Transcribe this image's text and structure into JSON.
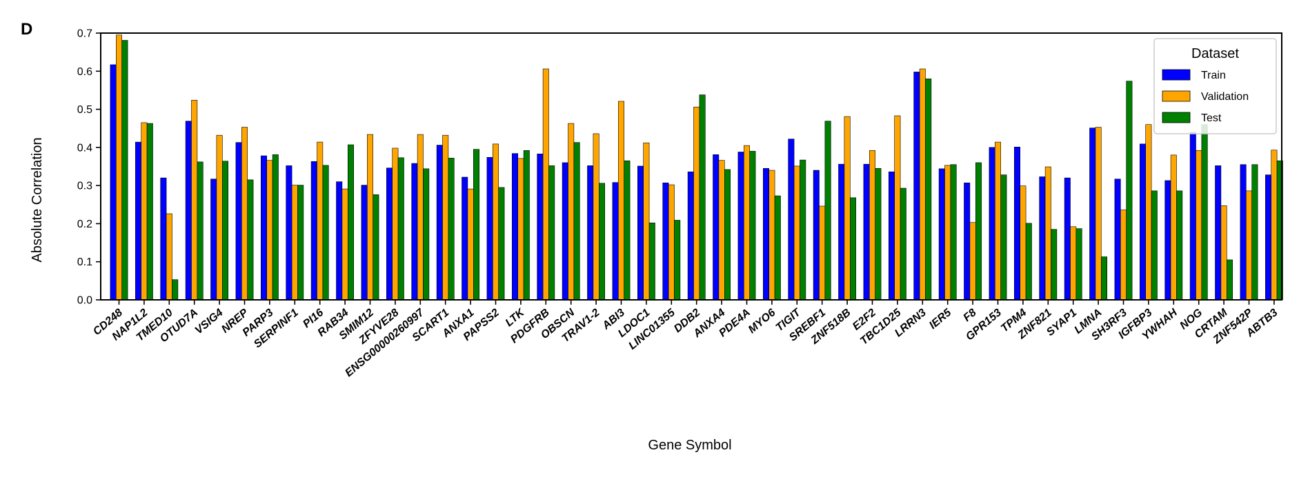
{
  "chart_data": {
    "type": "bar",
    "panel_label": "D",
    "xlabel": "Gene Symbol",
    "ylabel": "Absolute Correlation",
    "ylim": [
      0,
      0.7
    ],
    "yticks": [
      "0.0",
      "0.1",
      "0.2",
      "0.3",
      "0.4",
      "0.5",
      "0.6",
      "0.7"
    ],
    "legend": {
      "title": "Dataset",
      "position": "top-right"
    },
    "categories": [
      "CD248",
      "NAP1L2",
      "TMED10",
      "OTUD7A",
      "VSIG4",
      "NREP",
      "PARP3",
      "SERPINF1",
      "PI16",
      "RAB34",
      "SMIM12",
      "ZFYVE28",
      "ENSG00000260997",
      "SCART1",
      "ANXA1",
      "PAPSS2",
      "LTK",
      "PDGFRB",
      "OBSCN",
      "TRAV1-2",
      "ABI3",
      "LDOC1",
      "LINC01355",
      "DDB2",
      "ANXA4",
      "PDE4A",
      "MYO6",
      "TIGIT",
      "SREBF1",
      "ZNF518B",
      "E2F2",
      "TBC1D25",
      "LRRN3",
      "IER5",
      "F8",
      "GPR153",
      "TPM4",
      "ZNF821",
      "SYAP1",
      "LMNA",
      "SH3RF3",
      "IGFBP3",
      "YWHAH",
      "NOG",
      "CRTAM",
      "ZNF542P",
      "ABTB3"
    ],
    "series": [
      {
        "name": "Train",
        "color": "#0000ff",
        "values": [
          0.617,
          0.414,
          0.32,
          0.469,
          0.317,
          0.413,
          0.378,
          0.352,
          0.363,
          0.31,
          0.301,
          0.346,
          0.358,
          0.406,
          0.322,
          0.374,
          0.384,
          0.383,
          0.36,
          0.352,
          0.308,
          0.351,
          0.307,
          0.336,
          0.381,
          0.388,
          0.345,
          0.422,
          0.34,
          0.356,
          0.356,
          0.336,
          0.598,
          0.344,
          0.307,
          0.4,
          0.401,
          0.323,
          0.32,
          0.451,
          0.317,
          0.409,
          0.313,
          0.44,
          0.352,
          0.355,
          0.328
        ]
      },
      {
        "name": "Validation",
        "color": "#ffa500",
        "values": [
          0.695,
          0.465,
          0.226,
          0.524,
          0.432,
          0.453,
          0.366,
          0.301,
          0.414,
          0.291,
          0.434,
          0.398,
          0.434,
          0.432,
          0.291,
          0.409,
          0.371,
          0.606,
          0.463,
          0.436,
          0.521,
          0.412,
          0.302,
          0.506,
          0.366,
          0.405,
          0.34,
          0.351,
          0.246,
          0.481,
          0.392,
          0.483,
          0.606,
          0.353,
          0.203,
          0.414,
          0.299,
          0.349,
          0.192,
          0.453,
          0.236,
          0.46,
          0.38,
          0.392,
          0.247,
          0.286,
          0.393
        ]
      },
      {
        "name": "Test",
        "color": "#008000",
        "values": [
          0.681,
          0.463,
          0.053,
          0.362,
          0.364,
          0.315,
          0.381,
          0.301,
          0.353,
          0.407,
          0.276,
          0.373,
          0.344,
          0.372,
          0.395,
          0.295,
          0.392,
          0.352,
          0.413,
          0.306,
          0.365,
          0.202,
          0.209,
          0.538,
          0.342,
          0.39,
          0.273,
          0.367,
          0.469,
          0.268,
          0.345,
          0.293,
          0.58,
          0.355,
          0.36,
          0.328,
          0.201,
          0.185,
          0.187,
          0.113,
          0.574,
          0.286,
          0.286,
          0.46,
          0.105,
          0.355,
          0.365
        ]
      }
    ]
  }
}
